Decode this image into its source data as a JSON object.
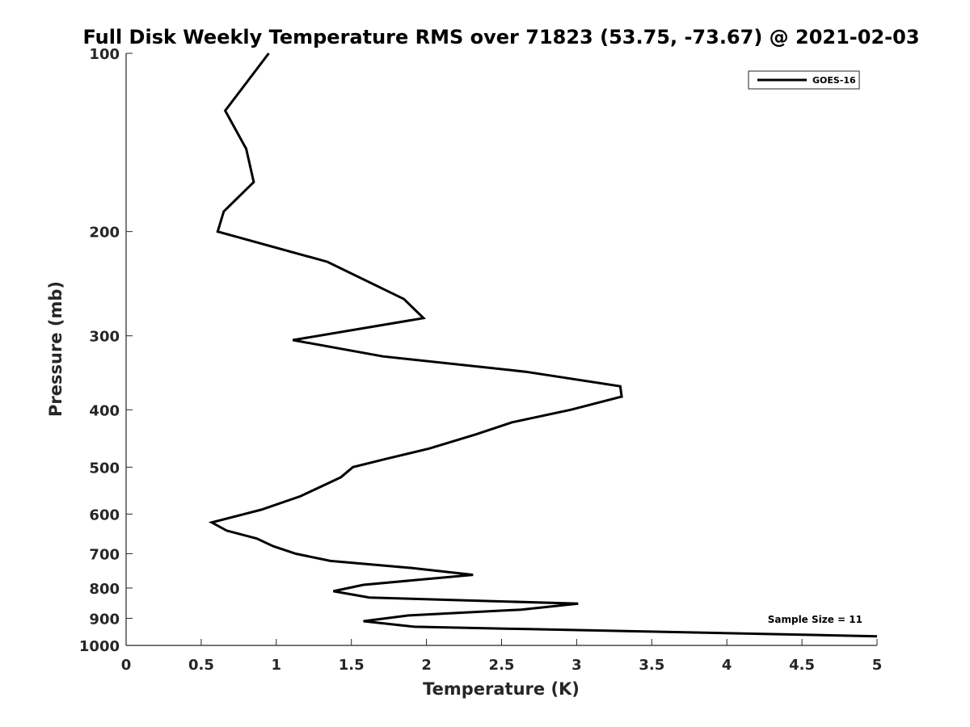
{
  "chart_data": {
    "type": "line",
    "title": "Full Disk Weekly Temperature RMS over 71823 (53.75, -73.67) @ 2021-02-03",
    "xlabel": "Temperature (K)",
    "ylabel": "Pressure (mb)",
    "xlim": [
      0,
      5
    ],
    "ylim": [
      100,
      1000
    ],
    "y_scale": "log",
    "y_reversed": true,
    "x_ticks": [
      0,
      0.5,
      1,
      1.5,
      2,
      2.5,
      3,
      3.5,
      4,
      4.5,
      5
    ],
    "x_tick_labels": [
      "0",
      "0.5",
      "1",
      "1.5",
      "2",
      "2.5",
      "3",
      "3.5",
      "4",
      "4.5",
      "5"
    ],
    "y_ticks": [
      100,
      200,
      300,
      400,
      500,
      600,
      700,
      800,
      900,
      1000
    ],
    "y_tick_labels": [
      "100",
      "200",
      "300",
      "400",
      "500",
      "600",
      "700",
      "800",
      "900",
      "1000"
    ],
    "grid": false,
    "legend_position": "top-right",
    "series": [
      {
        "name": "GOES-16",
        "color": "#000000",
        "points": [
          [
            0.95,
            100
          ],
          [
            0.66,
            125
          ],
          [
            0.8,
            145
          ],
          [
            0.85,
            165
          ],
          [
            0.65,
            185
          ],
          [
            0.61,
            200
          ],
          [
            1.34,
            225
          ],
          [
            1.85,
            260
          ],
          [
            1.98,
            280
          ],
          [
            1.11,
            305
          ],
          [
            1.71,
            325
          ],
          [
            2.66,
            345
          ],
          [
            3.29,
            365
          ],
          [
            3.3,
            380
          ],
          [
            2.96,
            400
          ],
          [
            2.57,
            420
          ],
          [
            2.33,
            440
          ],
          [
            2.02,
            465
          ],
          [
            1.72,
            485
          ],
          [
            1.51,
            500
          ],
          [
            1.43,
            520
          ],
          [
            1.16,
            560
          ],
          [
            0.9,
            590
          ],
          [
            0.57,
            620
          ],
          [
            0.67,
            640
          ],
          [
            0.87,
            660
          ],
          [
            0.98,
            680
          ],
          [
            1.13,
            700
          ],
          [
            1.36,
            720
          ],
          [
            1.9,
            740
          ],
          [
            2.31,
            760
          ],
          [
            1.58,
            790
          ],
          [
            1.38,
            810
          ],
          [
            1.62,
            830
          ],
          [
            3.01,
            850
          ],
          [
            2.63,
            870
          ],
          [
            1.88,
            890
          ],
          [
            1.58,
            910
          ],
          [
            1.92,
            930
          ],
          [
            5.0,
            965
          ]
        ]
      }
    ],
    "annotations": [
      "Sample Size = 11"
    ]
  }
}
